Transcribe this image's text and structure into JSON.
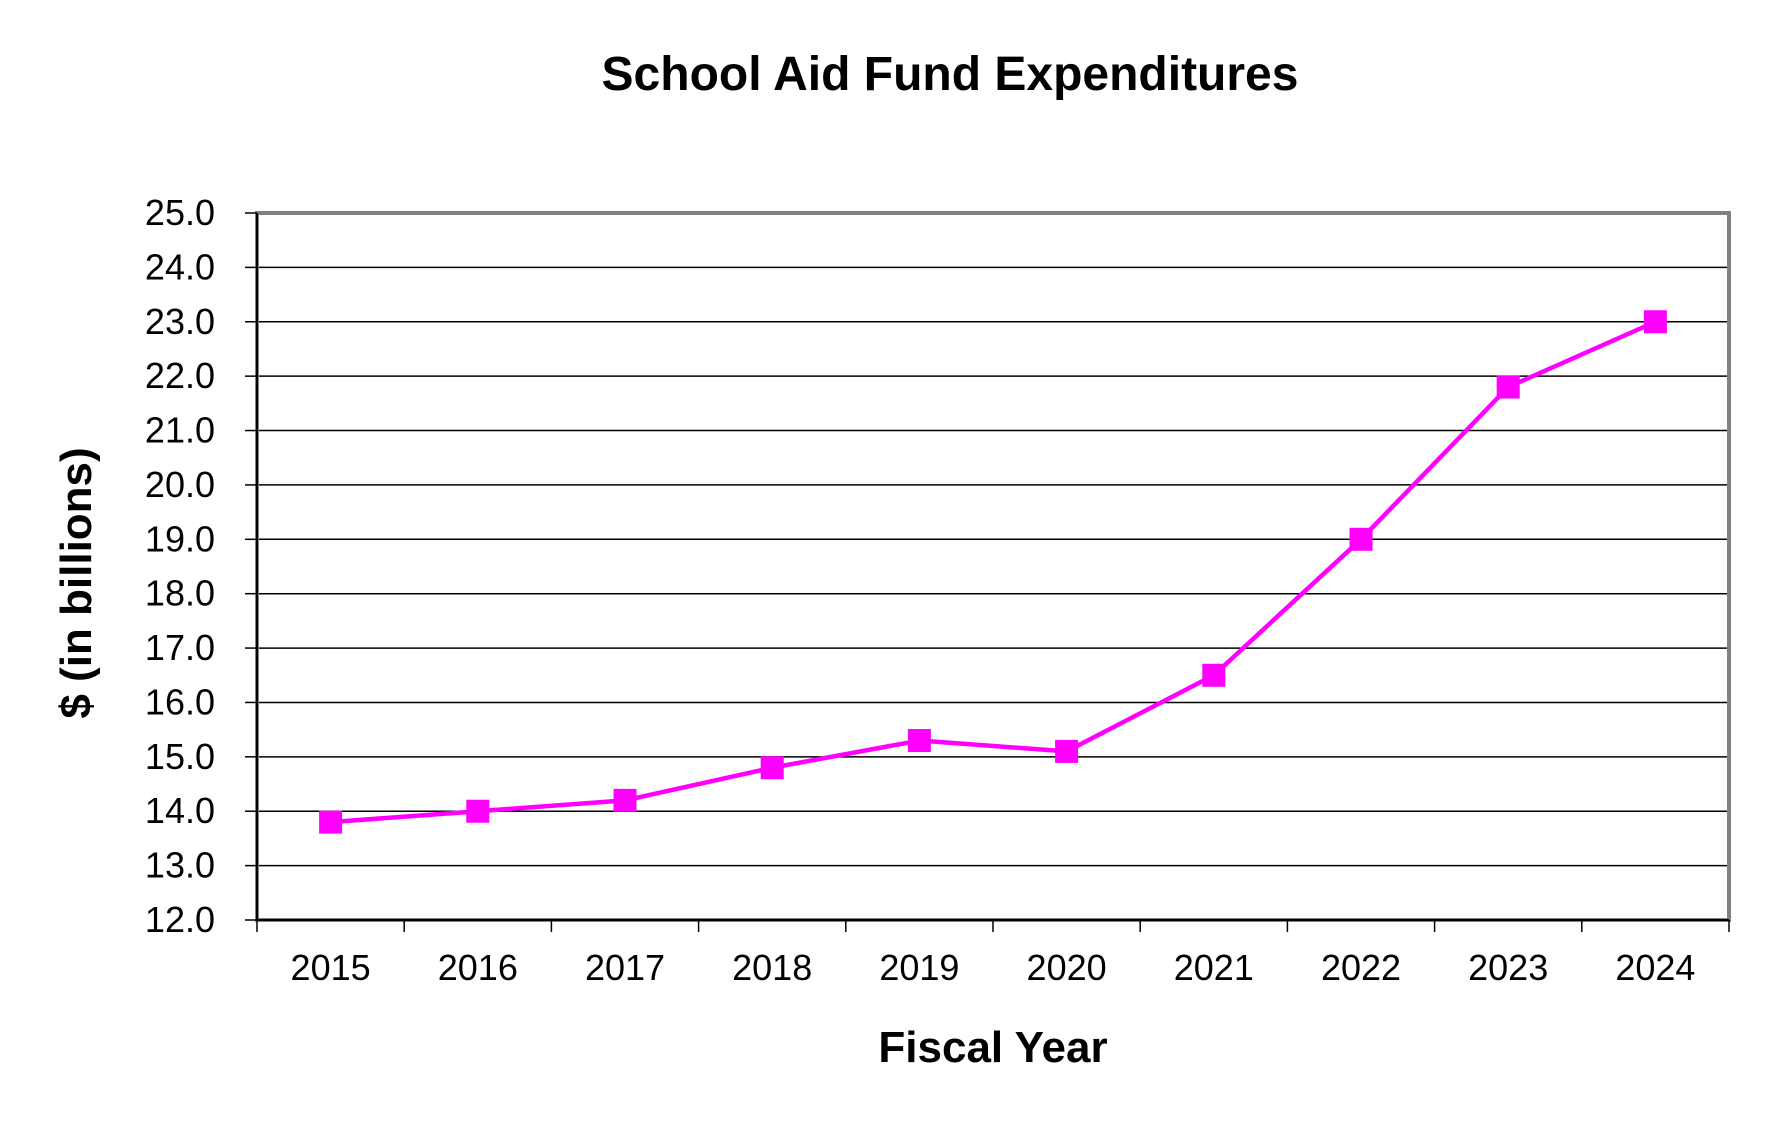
{
  "chart_data": {
    "type": "line",
    "title": "School Aid Fund Expenditures",
    "xlabel": "Fiscal Year",
    "ylabel": "$ (in billions)",
    "categories": [
      "2015",
      "2016",
      "2017",
      "2018",
      "2019",
      "2020",
      "2021",
      "2022",
      "2023",
      "2024"
    ],
    "series": [
      {
        "values": [
          13.8,
          14.0,
          14.2,
          14.8,
          15.3,
          15.1,
          16.5,
          19.0,
          21.8,
          23.0
        ],
        "color": "#FF00FF",
        "marker": "square"
      }
    ],
    "ylim": [
      12.0,
      25.0
    ],
    "ystep": 1.0,
    "ytick_labels": [
      "12.0",
      "13.0",
      "14.0",
      "15.0",
      "16.0",
      "17.0",
      "18.0",
      "19.0",
      "20.0",
      "21.0",
      "22.0",
      "23.0",
      "24.0",
      "25.0"
    ],
    "grid": true,
    "legend": "none"
  }
}
